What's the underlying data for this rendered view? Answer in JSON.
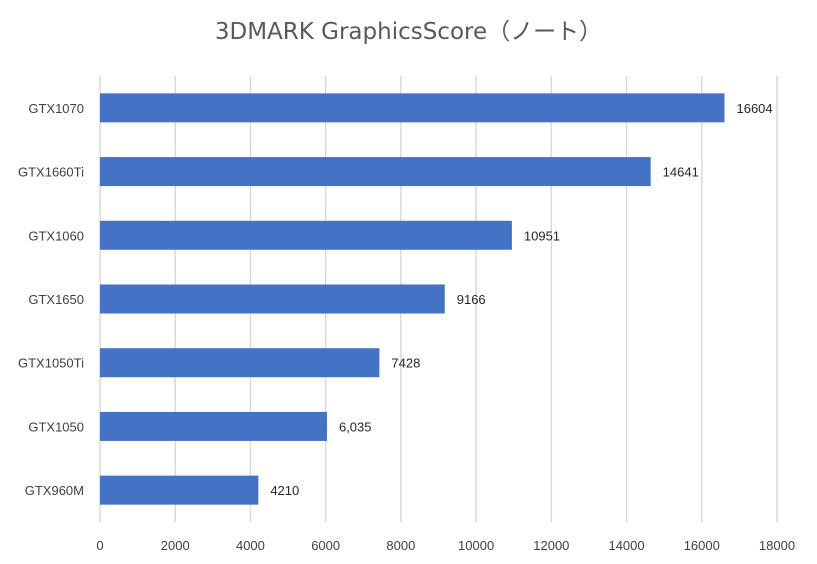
{
  "chart_data": {
    "type": "bar",
    "orientation": "horizontal",
    "title": "3DMARK GraphicsScore（ノート）",
    "xlabel": "",
    "ylabel": "",
    "categories": [
      "GTX1070",
      "GTX1660Ti",
      "GTX1060",
      "GTX1650",
      "GTX1050Ti",
      "GTX1050",
      "GTX960M"
    ],
    "values": [
      16604,
      14641,
      10951,
      9166,
      7428,
      6035,
      4210
    ],
    "data_labels": [
      "16604",
      "14641",
      "10951",
      "9166",
      "7428",
      "6,035",
      "4210"
    ],
    "xlim": [
      0,
      18000
    ],
    "x_ticks": [
      0,
      2000,
      4000,
      6000,
      8000,
      10000,
      12000,
      14000,
      16000,
      18000
    ],
    "grid": "vertical",
    "legend": "none",
    "bar_color": "#4472c4",
    "grid_color": "#d9d9d9"
  }
}
